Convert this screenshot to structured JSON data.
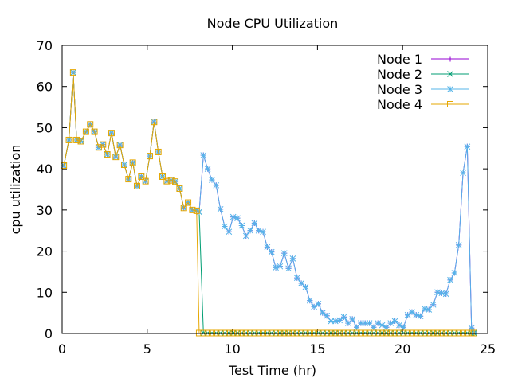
{
  "chart_data": {
    "type": "line",
    "title": "Node CPU Utilization",
    "xlabel": "Test Time (hr)",
    "ylabel": "cpu utilization",
    "xlim": [
      0,
      25
    ],
    "ylim": [
      0,
      70
    ],
    "xticks": [
      0,
      5,
      10,
      15,
      20,
      25
    ],
    "yticks": [
      0,
      10,
      20,
      30,
      40,
      50,
      60,
      70
    ],
    "xtick_labels": [
      "0",
      "5",
      "10",
      "15",
      "20",
      "25"
    ],
    "ytick_labels": [
      "0",
      "10",
      "20",
      "30",
      "40",
      "50",
      "60",
      "70"
    ],
    "legend_position": "top-right",
    "series": [
      {
        "name": "Node 1",
        "color": "#9400d3",
        "marker": "plus",
        "x": [
          0.1,
          0.4,
          0.65,
          0.85,
          1.1,
          1.4,
          1.65,
          1.9,
          2.15,
          2.4,
          2.65,
          2.9,
          3.15,
          3.4,
          3.65,
          3.9,
          4.15,
          4.4,
          4.65,
          4.9,
          5.15,
          5.4,
          5.65,
          5.9,
          6.15,
          6.4,
          6.65,
          6.9,
          7.15,
          7.4,
          7.65,
          7.9,
          8.05,
          8.3,
          8.55,
          8.8,
          9.05,
          9.3,
          9.55,
          9.8,
          10.05,
          10.3,
          10.55,
          10.8,
          11.05,
          11.3,
          11.55,
          11.8,
          12.05,
          12.3,
          12.55,
          12.8,
          13.05,
          13.3,
          13.55,
          13.8,
          14.05,
          14.3,
          14.55,
          14.8,
          15.05,
          15.3,
          15.55,
          15.8,
          16.05,
          16.3,
          16.55,
          16.8,
          17.05,
          17.3,
          17.55,
          17.8,
          18.05,
          18.3,
          18.55,
          18.8,
          19.05,
          19.3,
          19.55,
          19.8,
          20.05,
          20.3,
          20.55,
          20.8,
          21.05,
          21.3,
          21.55,
          21.8,
          22.05,
          22.3,
          22.55,
          22.8,
          23.05,
          23.3,
          23.55,
          23.8,
          24.05,
          24.2
        ],
        "y": [
          40.8,
          47,
          63.4,
          47,
          46.7,
          49,
          50.8,
          49,
          45.2,
          45.9,
          43.5,
          48.7,
          42.9,
          45.8,
          41,
          37.5,
          41.5,
          35.8,
          38.1,
          37,
          43.1,
          51.4,
          44.1,
          38.1,
          37,
          37.2,
          36.9,
          35.2,
          30.5,
          31.8,
          30,
          29.8,
          29.5,
          43.3,
          40,
          37.3,
          36,
          30.2,
          26,
          24.7,
          28.3,
          28,
          26.2,
          23.7,
          25,
          26.8,
          25,
          24.7,
          21,
          19.8,
          16,
          16.3,
          19.5,
          15.8,
          18.2,
          13.5,
          12.2,
          11.3,
          8,
          6.5,
          7.2,
          5,
          4.3,
          3,
          3,
          3.2,
          4,
          2.5,
          3.5,
          1.5,
          2.5,
          2.5,
          2.5,
          1.5,
          2.5,
          2,
          1.5,
          2.5,
          3,
          2,
          1.5,
          4.5,
          5.2,
          4.5,
          4.2,
          6,
          5.8,
          7,
          10,
          9.8,
          9.6,
          13,
          14.7,
          21.5,
          39,
          45.4,
          1.3,
          0.3
        ]
      },
      {
        "name": "Node 2",
        "color": "#009e73",
        "marker": "cross",
        "x": [
          0.1,
          0.4,
          0.65,
          0.85,
          1.1,
          1.4,
          1.65,
          1.9,
          2.15,
          2.4,
          2.65,
          2.9,
          3.15,
          3.4,
          3.65,
          3.9,
          4.15,
          4.4,
          4.65,
          4.9,
          5.15,
          5.4,
          5.65,
          5.9,
          6.15,
          6.4,
          6.65,
          6.9,
          7.15,
          7.4,
          7.65,
          7.9,
          8.05,
          8.3,
          8.55,
          8.8,
          9.05,
          9.3,
          9.55,
          9.8,
          10.05,
          10.3,
          10.55,
          10.8,
          11.05,
          11.3,
          11.55,
          11.8,
          12.05,
          12.3,
          12.55,
          12.8,
          13.05,
          13.3,
          13.55,
          13.8,
          14.05,
          14.3,
          14.55,
          14.8,
          15.05,
          15.3,
          15.55,
          15.8,
          16.05,
          16.3,
          16.55,
          16.8,
          17.05,
          17.3,
          17.55,
          17.8,
          18.05,
          18.3,
          18.55,
          18.8,
          19.05,
          19.3,
          19.55,
          19.8,
          20.05,
          20.3,
          20.55,
          20.8,
          21.05,
          21.3,
          21.55,
          21.8,
          22.05,
          22.3,
          22.55,
          22.8,
          23.05,
          23.3,
          23.55,
          23.8,
          24.05,
          24.2
        ],
        "y": [
          40.8,
          47,
          63.4,
          47,
          46.7,
          49,
          50.8,
          49,
          45.2,
          45.9,
          43.5,
          48.7,
          42.9,
          45.8,
          41,
          37.5,
          41.5,
          35.8,
          38.1,
          37,
          43.1,
          51.4,
          44.1,
          38.1,
          37,
          37.2,
          36.9,
          35.2,
          30.5,
          31.8,
          30,
          29.8,
          29.5,
          0.1,
          0.1,
          0.1,
          0.1,
          0.1,
          0.1,
          0.1,
          0.1,
          0.1,
          0.1,
          0.1,
          0.1,
          0.1,
          0.1,
          0.1,
          0.1,
          0.1,
          0.1,
          0.1,
          0.1,
          0.1,
          0.1,
          0.1,
          0.1,
          0.1,
          0.1,
          0.1,
          0.1,
          0.1,
          0.1,
          0.1,
          0.1,
          0.1,
          0.1,
          0.1,
          0.1,
          0.1,
          0.1,
          0.1,
          0.1,
          0.1,
          0.1,
          0.1,
          0.1,
          0.1,
          0.1,
          0.1,
          0.1,
          0.1,
          0.1,
          0.1,
          0.1,
          0.1,
          0.1,
          0.1,
          0.1,
          0.1,
          0.1,
          0.1,
          0.1,
          0.1,
          0.1,
          0.1,
          0.1,
          0.1
        ]
      },
      {
        "name": "Node 3",
        "color": "#56b4e9",
        "marker": "star",
        "x": [
          0.1,
          0.4,
          0.65,
          0.85,
          1.1,
          1.4,
          1.65,
          1.9,
          2.15,
          2.4,
          2.65,
          2.9,
          3.15,
          3.4,
          3.65,
          3.9,
          4.15,
          4.4,
          4.65,
          4.9,
          5.15,
          5.4,
          5.65,
          5.9,
          6.15,
          6.4,
          6.65,
          6.9,
          7.15,
          7.4,
          7.65,
          7.9,
          8.05,
          8.3,
          8.55,
          8.8,
          9.05,
          9.3,
          9.55,
          9.8,
          10.05,
          10.3,
          10.55,
          10.8,
          11.05,
          11.3,
          11.55,
          11.8,
          12.05,
          12.3,
          12.55,
          12.8,
          13.05,
          13.3,
          13.55,
          13.8,
          14.05,
          14.3,
          14.55,
          14.8,
          15.05,
          15.3,
          15.55,
          15.8,
          16.05,
          16.3,
          16.55,
          16.8,
          17.05,
          17.3,
          17.55,
          17.8,
          18.05,
          18.3,
          18.55,
          18.8,
          19.05,
          19.3,
          19.55,
          19.8,
          20.05,
          20.3,
          20.55,
          20.8,
          21.05,
          21.3,
          21.55,
          21.8,
          22.05,
          22.3,
          22.55,
          22.8,
          23.05,
          23.3,
          23.55,
          23.8,
          24.05,
          24.2
        ],
        "y": [
          40.8,
          47,
          63.4,
          47,
          46.7,
          49,
          50.8,
          49,
          45.2,
          45.9,
          43.5,
          48.7,
          42.9,
          45.8,
          41,
          37.5,
          41.5,
          35.8,
          38.1,
          37,
          43.1,
          51.4,
          44.1,
          38.1,
          37,
          37.2,
          36.9,
          35.2,
          30.5,
          31.8,
          30,
          29.8,
          29.5,
          43.3,
          40,
          37.3,
          36,
          30.2,
          26,
          24.7,
          28.3,
          28,
          26.2,
          23.7,
          25,
          26.8,
          25,
          24.7,
          21,
          19.8,
          16,
          16.3,
          19.5,
          15.8,
          18.2,
          13.5,
          12.2,
          11.3,
          8,
          6.5,
          7.2,
          5,
          4.3,
          3,
          3,
          3.2,
          4,
          2.5,
          3.5,
          1.5,
          2.5,
          2.5,
          2.5,
          1.5,
          2.5,
          2,
          1.5,
          2.5,
          3,
          2,
          1.5,
          4.5,
          5.2,
          4.5,
          4.2,
          6,
          5.8,
          7,
          10,
          9.8,
          9.6,
          13,
          14.7,
          21.5,
          39,
          45.4,
          1.3,
          0.3
        ]
      },
      {
        "name": "Node 4",
        "color": "#e6a700",
        "marker": "square",
        "x": [
          0.1,
          0.4,
          0.65,
          0.85,
          1.1,
          1.4,
          1.65,
          1.9,
          2.15,
          2.4,
          2.65,
          2.9,
          3.15,
          3.4,
          3.65,
          3.9,
          4.15,
          4.4,
          4.65,
          4.9,
          5.15,
          5.4,
          5.65,
          5.9,
          6.15,
          6.4,
          6.65,
          6.9,
          7.15,
          7.4,
          7.65,
          7.9,
          8.05,
          8.3,
          8.55,
          8.8,
          9.05,
          9.3,
          9.55,
          9.8,
          10.05,
          10.3,
          10.55,
          10.8,
          11.05,
          11.3,
          11.55,
          11.8,
          12.05,
          12.3,
          12.55,
          12.8,
          13.05,
          13.3,
          13.55,
          13.8,
          14.05,
          14.3,
          14.55,
          14.8,
          15.05,
          15.3,
          15.55,
          15.8,
          16.05,
          16.3,
          16.55,
          16.8,
          17.05,
          17.3,
          17.55,
          17.8,
          18.05,
          18.3,
          18.55,
          18.8,
          19.05,
          19.3,
          19.55,
          19.8,
          20.05,
          20.3,
          20.55,
          20.8,
          21.05,
          21.3,
          21.55,
          21.8,
          22.05,
          22.3,
          22.55,
          22.8,
          23.05,
          23.3,
          23.55,
          23.8,
          24.05,
          24.2
        ],
        "y": [
          40.8,
          47,
          63.4,
          47,
          46.7,
          49,
          50.8,
          49,
          45.2,
          45.9,
          43.5,
          48.7,
          42.9,
          45.8,
          41,
          37.5,
          41.5,
          35.8,
          38.1,
          37,
          43.1,
          51.4,
          44.1,
          38.1,
          37,
          37.2,
          36.9,
          35.2,
          30.5,
          31.8,
          30,
          29.8,
          0.1,
          0.1,
          0.1,
          0.1,
          0.1,
          0.1,
          0.1,
          0.1,
          0.1,
          0.1,
          0.1,
          0.1,
          0.1,
          0.1,
          0.1,
          0.1,
          0.1,
          0.1,
          0.1,
          0.1,
          0.1,
          0.1,
          0.1,
          0.1,
          0.1,
          0.1,
          0.1,
          0.1,
          0.1,
          0.1,
          0.1,
          0.1,
          0.1,
          0.1,
          0.1,
          0.1,
          0.1,
          0.1,
          0.1,
          0.1,
          0.1,
          0.1,
          0.1,
          0.1,
          0.1,
          0.1,
          0.1,
          0.1,
          0.1,
          0.1,
          0.1,
          0.1,
          0.1,
          0.1,
          0.1,
          0.1,
          0.1,
          0.1,
          0.1,
          0.1,
          0.1,
          0.1,
          0.1,
          0.1,
          0.1,
          0.1
        ]
      }
    ]
  }
}
